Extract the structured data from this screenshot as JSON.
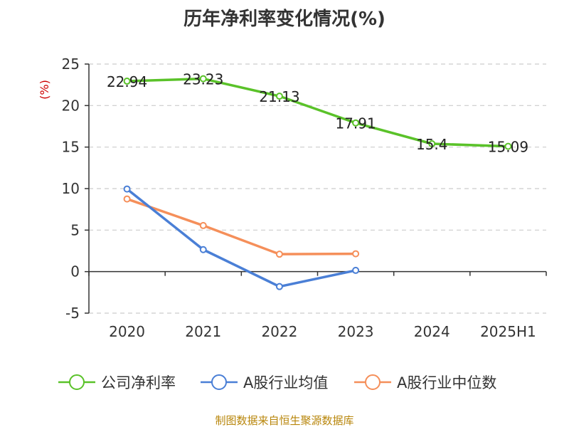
{
  "title": "历年净利率变化情况(%)",
  "source_note": "制图数据来自恒生聚源数据库",
  "chart_data": {
    "type": "line",
    "title": "历年净利率变化情况(%)",
    "ylabel": "(%)",
    "xlabel": "",
    "categories": [
      "2020",
      "2021",
      "2022",
      "2023",
      "2024",
      "2025H1"
    ],
    "ylim": [
      -5,
      25
    ],
    "yticks": [
      -5,
      0,
      5,
      10,
      15,
      20,
      25
    ],
    "ytick_labels": [
      "-5",
      "0",
      "5",
      "10",
      "15",
      "20",
      "25"
    ],
    "grid": true,
    "legend_position": "bottom",
    "series": [
      {
        "name": "公司净利率",
        "color": "#5ac229",
        "values": [
          22.94,
          23.23,
          21.13,
          17.91,
          15.4,
          15.09
        ],
        "labels": [
          "22.94",
          "23.23",
          "21.13",
          "17.91",
          "15.4",
          "15.09"
        ]
      },
      {
        "name": "A股行业均值",
        "color": "#4a7fd6",
        "values": [
          9.95,
          2.65,
          -1.8,
          0.15,
          null,
          null
        ]
      },
      {
        "name": "A股行业中位数",
        "color": "#f58f5a",
        "values": [
          8.75,
          5.55,
          2.1,
          2.15,
          null,
          null
        ]
      }
    ]
  }
}
